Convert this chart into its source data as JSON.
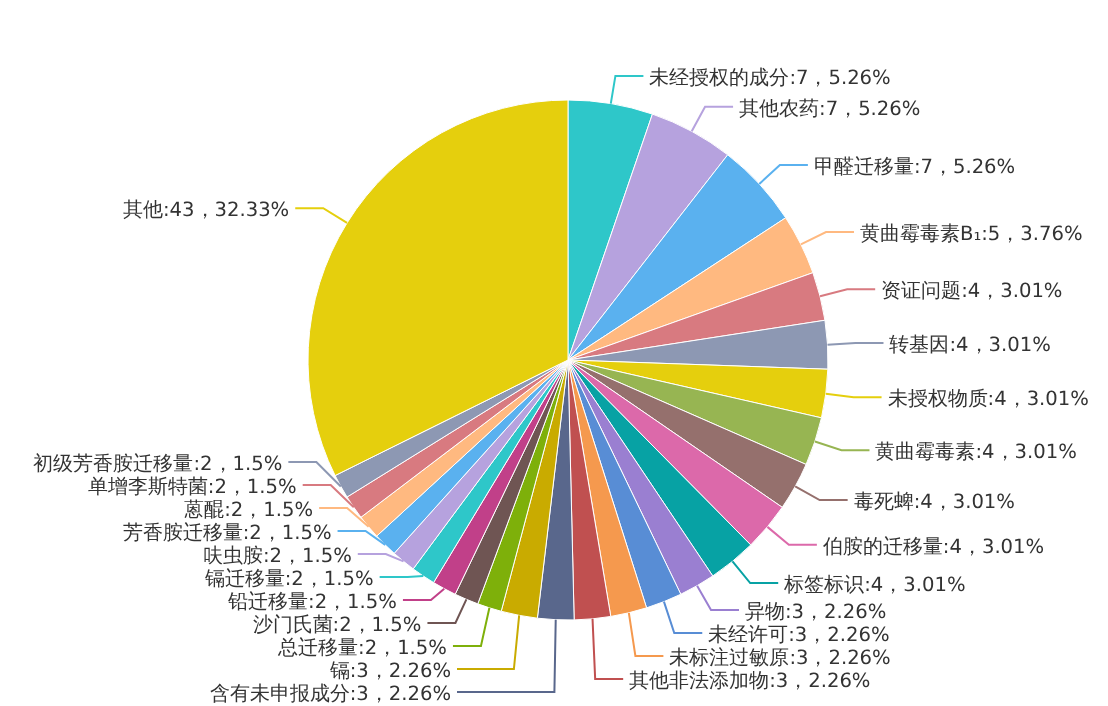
{
  "chart_data": {
    "type": "pie",
    "categories": [
      "未经授权的成分",
      "其他农药",
      "甲醛迁移量",
      "黄曲霉毒素B₁",
      "资证问题",
      "转基因",
      "未授权物质",
      "黄曲霉毒素",
      "毒死蜱",
      "伯胺的迁移量",
      "标签标识",
      "异物",
      "未经许可",
      "未标注过敏原",
      "其他非法添加物",
      "含有未申报成分",
      "镉",
      "总迁移量",
      "沙门氏菌",
      "铅迁移量",
      "镉迁移量",
      "呋虫胺",
      "芳香胺迁移量",
      "蒽醌",
      "单增李斯特菌",
      "初级芳香胺迁移量",
      "其他"
    ],
    "values": [
      7,
      7,
      7,
      5,
      4,
      4,
      4,
      4,
      4,
      4,
      4,
      3,
      3,
      3,
      3,
      3,
      3,
      2,
      2,
      2,
      2,
      2,
      2,
      2,
      2,
      2,
      43
    ],
    "value_labels": [
      "7，5.26%",
      "7，5.26%",
      "7，5.26%",
      "5，3.76%",
      "4，3.01%",
      "4，3.01%",
      "4，3.01%",
      "4，3.01%",
      "4，3.01%",
      "4，3.01%",
      "4，3.01%",
      "3，2.26%",
      "3，2.26%",
      "3，2.26%",
      "3，2.26%",
      "3，2.26%",
      "3，2.26%",
      "2，1.5%",
      "2，1.5%",
      "2，1.5%",
      "2，1.5%",
      "2，1.5%",
      "2，1.5%",
      "2，1.5%",
      "2，1.5%",
      "2，1.5%",
      "43，32.33%"
    ],
    "colors": [
      "#2ec7c9",
      "#b6a2de",
      "#5ab1ef",
      "#ffb980",
      "#d87a80",
      "#8d98b3",
      "#e5cf0d",
      "#97b552",
      "#95706d",
      "#dc69aa",
      "#07a2a4",
      "#9a7fd1",
      "#588dd5",
      "#f5994e",
      "#c05050",
      "#59678c",
      "#c9ab00",
      "#7eb00a",
      "#6f5553",
      "#c14089",
      "#2ec7c9",
      "#b6a2de",
      "#5ab1ef",
      "#ffb980",
      "#d87a80",
      "#8d98b3",
      "#e5cf0d"
    ]
  }
}
